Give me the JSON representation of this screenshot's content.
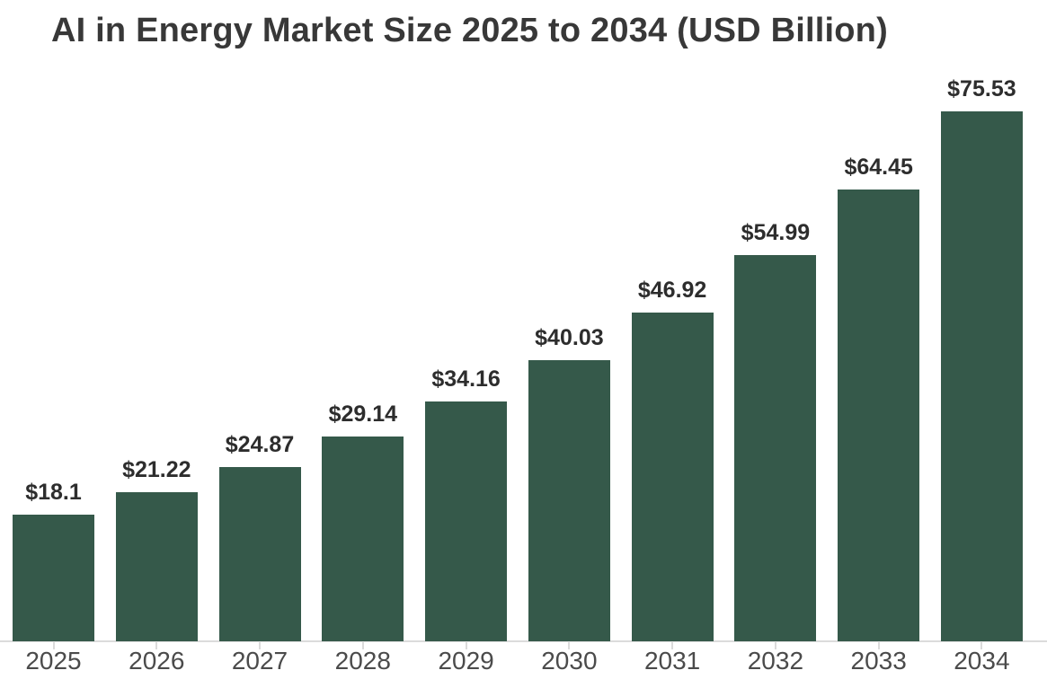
{
  "chart_data": {
    "type": "bar",
    "title": "AI in Energy Market Size 2025 to 2034 (USD Billion)",
    "categories": [
      "2025",
      "2026",
      "2027",
      "2028",
      "2029",
      "2030",
      "2031",
      "2032",
      "2033",
      "2034"
    ],
    "values": [
      18.1,
      21.22,
      24.87,
      29.14,
      34.16,
      40.03,
      46.92,
      54.99,
      64.45,
      75.53
    ],
    "value_labels": [
      "$18.1",
      "$21.22",
      "$24.87",
      "$29.14",
      "$34.16",
      "$40.03",
      "$46.92",
      "$54.99",
      "$64.45",
      "$75.53"
    ],
    "xlabel": "",
    "ylabel": "",
    "ylim": [
      0,
      80
    ],
    "grid": false,
    "legend": false,
    "value_prefix": "$"
  },
  "colors": {
    "bar": "#35594a",
    "title": "#383838",
    "value_label": "#2d2d2d",
    "axis_label": "#4b4b4b",
    "axis_line": "#dbdbdb",
    "background": "#ffffff"
  }
}
